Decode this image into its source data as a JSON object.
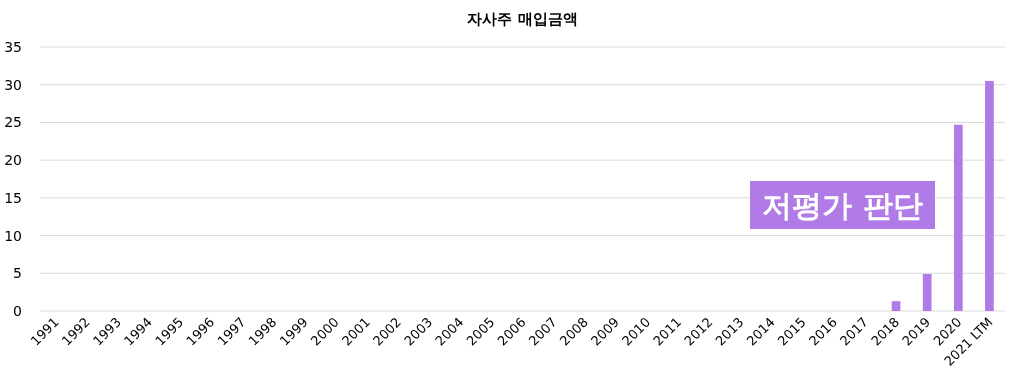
{
  "chart_data": {
    "type": "bar",
    "title": "자사주 매입금액",
    "categories": [
      "1991",
      "1992",
      "1993",
      "1994",
      "1995",
      "1996",
      "1997",
      "1998",
      "1999",
      "2000",
      "2001",
      "2002",
      "2003",
      "2004",
      "2005",
      "2006",
      "2007",
      "2008",
      "2009",
      "2010",
      "2011",
      "2012",
      "2013",
      "2014",
      "2015",
      "2016",
      "2017",
      "2018",
      "2019",
      "2020",
      "2021 LTM"
    ],
    "values": [
      0,
      0,
      0,
      0,
      0,
      0,
      0,
      0,
      0,
      0,
      0,
      0,
      0,
      0,
      0,
      0,
      0,
      0,
      0,
      0,
      0,
      0,
      0,
      0,
      0,
      0,
      0,
      1.3,
      4.9,
      24.7,
      30.5
    ],
    "color": "#b07be6",
    "ylim": [
      0,
      35
    ],
    "yticks": [
      0,
      5,
      10,
      15,
      20,
      25,
      30,
      35
    ],
    "grid": "y",
    "annotations": [
      "저평가 판단"
    ]
  }
}
